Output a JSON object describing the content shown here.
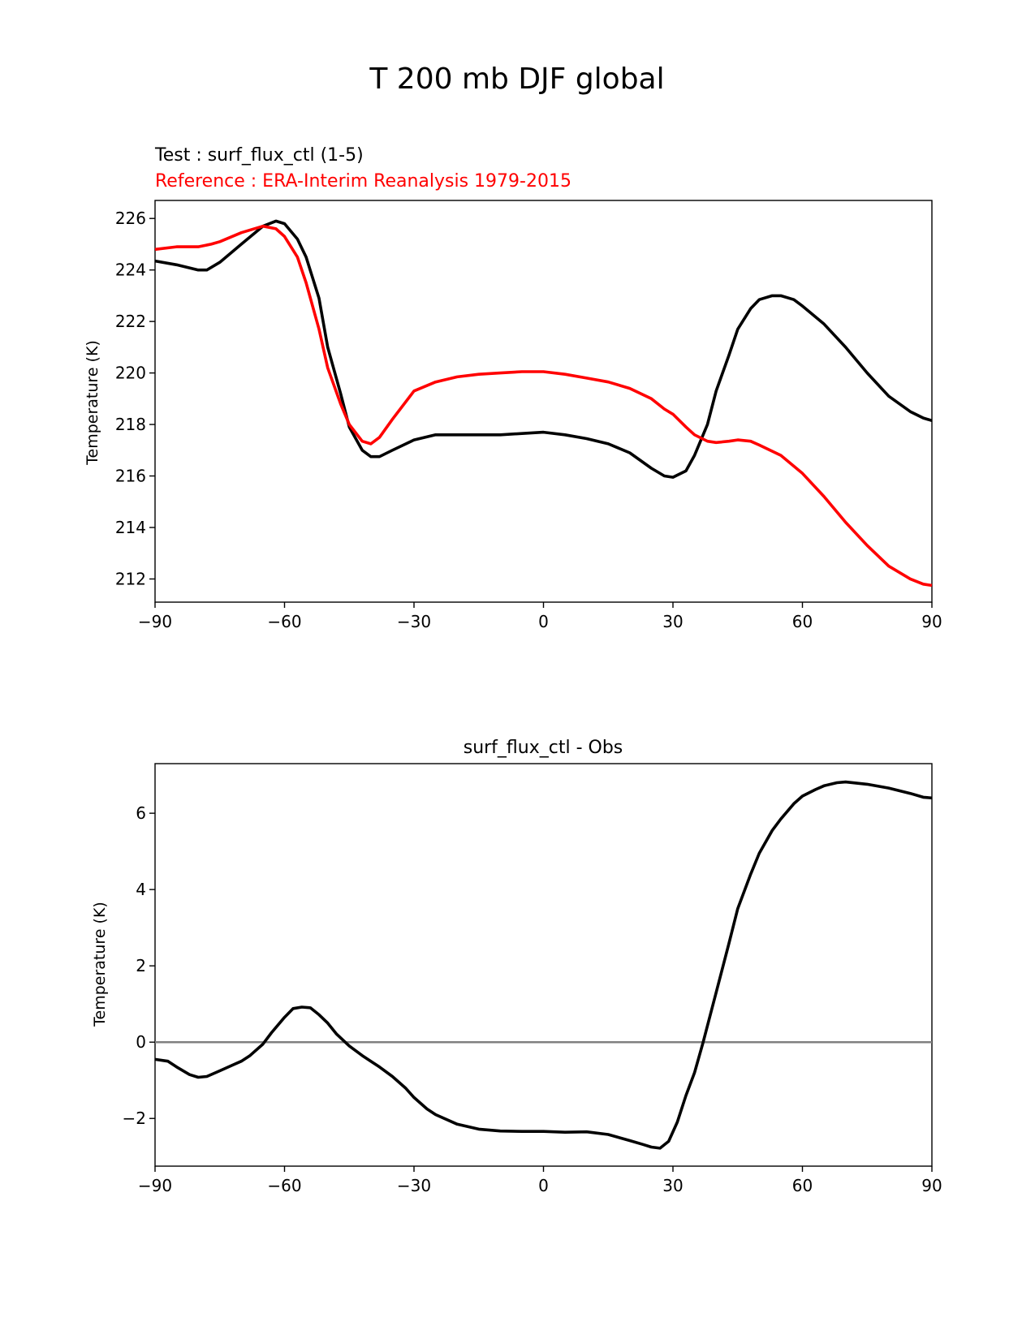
{
  "figure": {
    "suptitle": "T 200 mb DJF global"
  },
  "chart_data": [
    {
      "type": "line",
      "test_label": "Test : surf_flux_ctl (1-5)",
      "reference_label": "Reference : ERA-Interim Reanalysis 1979-2015",
      "xlabel": "",
      "ylabel": "Temperature (K)",
      "xlim": [
        -90,
        90
      ],
      "ylim": [
        211.1,
        226.7
      ],
      "xticks": [
        -90,
        -60,
        -30,
        0,
        30,
        60,
        90
      ],
      "xtick_labels": [
        "−90",
        "−60",
        "−30",
        "0",
        "30",
        "60",
        "90"
      ],
      "yticks": [
        212,
        214,
        216,
        218,
        220,
        222,
        224,
        226
      ],
      "ytick_labels": [
        "212",
        "214",
        "216",
        "218",
        "220",
        "222",
        "224",
        "226"
      ],
      "series": [
        {
          "name": "Test : surf_flux_ctl (1-5)",
          "color": "#000000",
          "x": [
            -90,
            -85,
            -80,
            -78,
            -75,
            -70,
            -65,
            -62,
            -60,
            -57,
            -55,
            -52,
            -50,
            -47,
            -45,
            -42,
            -40,
            -38,
            -35,
            -30,
            -25,
            -20,
            -15,
            -10,
            -5,
            0,
            5,
            10,
            15,
            20,
            25,
            28,
            30,
            33,
            35,
            38,
            40,
            43,
            45,
            48,
            50,
            53,
            55,
            58,
            60,
            65,
            70,
            75,
            80,
            85,
            88,
            90
          ],
          "y": [
            224.35,
            224.2,
            224.0,
            224.0,
            224.3,
            225.0,
            225.7,
            225.9,
            225.8,
            225.2,
            224.5,
            222.9,
            221.0,
            219.2,
            217.9,
            217.0,
            216.75,
            216.75,
            217.0,
            217.4,
            217.6,
            217.6,
            217.6,
            217.6,
            217.65,
            217.7,
            217.6,
            217.45,
            217.25,
            216.9,
            216.3,
            216.0,
            215.95,
            216.2,
            216.8,
            218.0,
            219.3,
            220.7,
            221.7,
            222.5,
            222.85,
            223.0,
            223.0,
            222.85,
            222.6,
            221.9,
            221.0,
            220.0,
            219.1,
            218.5,
            218.25,
            218.15
          ]
        },
        {
          "name": "Reference : ERA-Interim Reanalysis 1979-2015",
          "color": "#ff0000",
          "x": [
            -90,
            -85,
            -80,
            -77,
            -75,
            -70,
            -65,
            -62,
            -60,
            -57,
            -55,
            -52,
            -50,
            -47,
            -45,
            -42,
            -40,
            -38,
            -35,
            -30,
            -25,
            -20,
            -15,
            -10,
            -5,
            0,
            5,
            10,
            15,
            20,
            25,
            28,
            30,
            33,
            35,
            38,
            40,
            43,
            45,
            48,
            50,
            55,
            60,
            65,
            70,
            75,
            80,
            85,
            88,
            90
          ],
          "y": [
            224.8,
            224.9,
            224.9,
            225.0,
            225.1,
            225.45,
            225.7,
            225.6,
            225.3,
            224.5,
            223.5,
            221.7,
            220.2,
            218.8,
            218.0,
            217.35,
            217.25,
            217.5,
            218.2,
            219.3,
            219.65,
            219.85,
            219.95,
            220.0,
            220.05,
            220.05,
            219.95,
            219.8,
            219.65,
            219.4,
            219.0,
            218.6,
            218.4,
            217.9,
            217.6,
            217.35,
            217.3,
            217.35,
            217.4,
            217.35,
            217.2,
            216.8,
            216.1,
            215.2,
            214.2,
            213.3,
            212.5,
            212.0,
            211.8,
            211.75
          ]
        }
      ]
    },
    {
      "type": "line",
      "title": "surf_flux_ctl - Obs",
      "xlabel": "",
      "ylabel": "Temperature (K)",
      "xlim": [
        -90,
        90
      ],
      "ylim": [
        -3.25,
        7.3
      ],
      "xticks": [
        -90,
        -60,
        -30,
        0,
        30,
        60,
        90
      ],
      "xtick_labels": [
        "−90",
        "−60",
        "−30",
        "0",
        "30",
        "60",
        "90"
      ],
      "yticks": [
        -2,
        0,
        2,
        4,
        6
      ],
      "ytick_labels": [
        "−2",
        "0",
        "2",
        "4",
        "6"
      ],
      "zero_line_color": "#808080",
      "series": [
        {
          "name": "surf_flux_ctl - Obs",
          "color": "#000000",
          "x": [
            -90,
            -87,
            -85,
            -82,
            -80,
            -78,
            -75,
            -72,
            -70,
            -68,
            -65,
            -63,
            -60,
            -58,
            -56,
            -54,
            -52,
            -50,
            -48,
            -45,
            -42,
            -40,
            -38,
            -35,
            -32,
            -30,
            -27,
            -25,
            -20,
            -15,
            -10,
            -5,
            0,
            5,
            10,
            15,
            20,
            23,
            25,
            27,
            29,
            31,
            33,
            35,
            37,
            40,
            43,
            45,
            48,
            50,
            53,
            55,
            58,
            60,
            63,
            65,
            68,
            70,
            75,
            80,
            85,
            88,
            90
          ],
          "y": [
            -0.45,
            -0.5,
            -0.65,
            -0.85,
            -0.92,
            -0.9,
            -0.75,
            -0.6,
            -0.5,
            -0.35,
            -0.05,
            0.25,
            0.65,
            0.88,
            0.92,
            0.9,
            0.72,
            0.5,
            0.22,
            -0.1,
            -0.35,
            -0.5,
            -0.65,
            -0.9,
            -1.2,
            -1.45,
            -1.75,
            -1.9,
            -2.15,
            -2.28,
            -2.33,
            -2.34,
            -2.34,
            -2.36,
            -2.35,
            -2.42,
            -2.58,
            -2.68,
            -2.75,
            -2.78,
            -2.6,
            -2.1,
            -1.4,
            -0.8,
            0.0,
            1.3,
            2.6,
            3.5,
            4.4,
            4.95,
            5.55,
            5.85,
            6.25,
            6.45,
            6.62,
            6.72,
            6.8,
            6.82,
            6.76,
            6.66,
            6.52,
            6.42,
            6.4
          ]
        }
      ]
    }
  ]
}
